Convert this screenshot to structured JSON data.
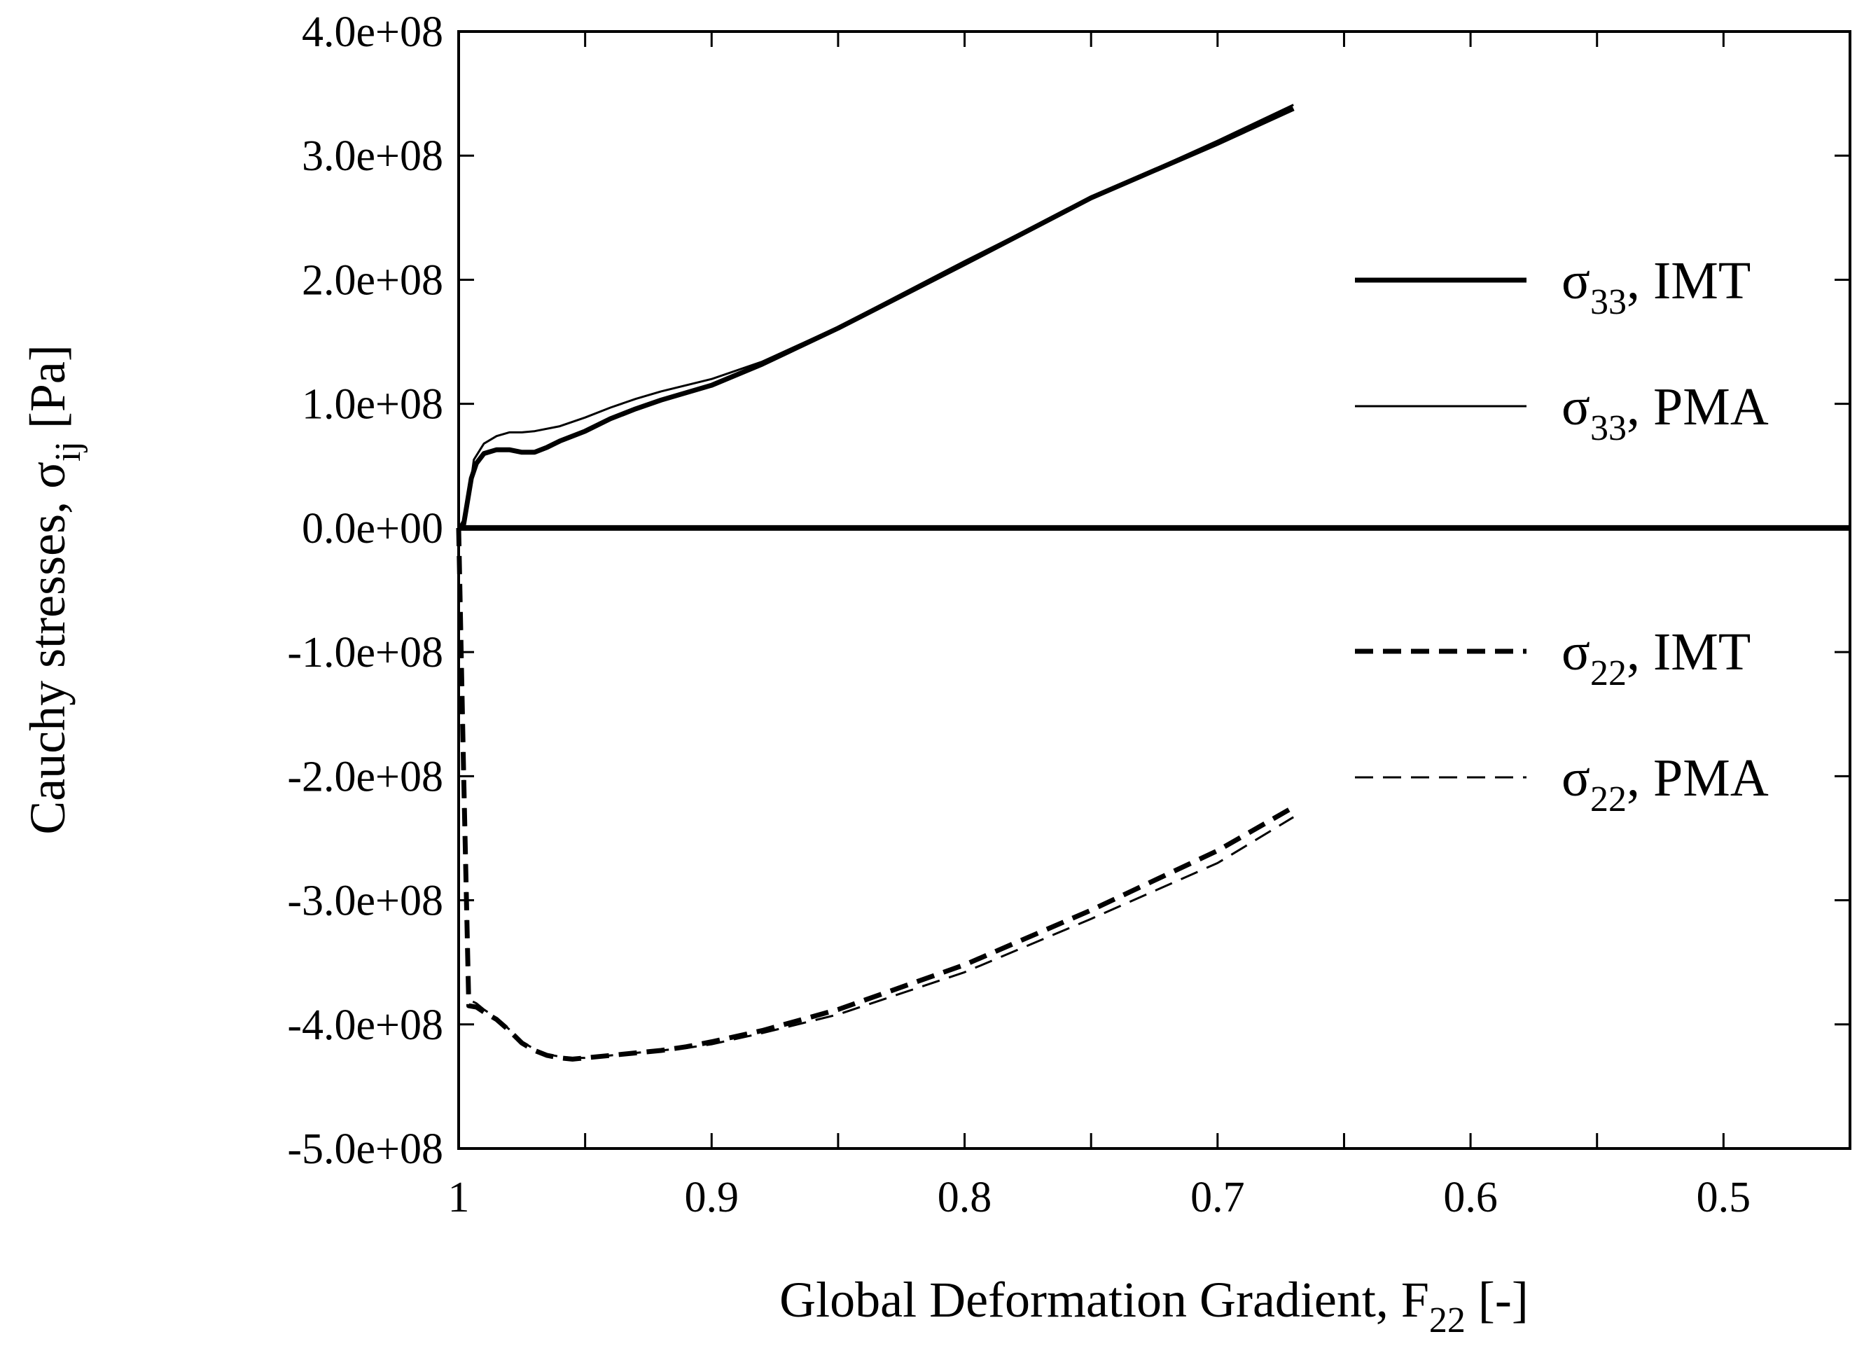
{
  "chart_data": {
    "type": "line",
    "xlabel": {
      "main": "Global Deformation Gradient, F",
      "sub": "22",
      "suffix": "  [-]"
    },
    "ylabel": {
      "main": "Cauchy stresses, σ",
      "sub": "ij",
      "suffix": "  [Pa]"
    },
    "xlim": [
      1.0,
      0.45
    ],
    "ylim": [
      -500000000,
      400000000
    ],
    "x_reversed": true,
    "xticks": [
      1.0,
      0.95,
      0.9,
      0.85,
      0.8,
      0.75,
      0.7,
      0.65,
      0.6,
      0.55,
      0.5,
      0.45
    ],
    "xtick_labels": [
      {
        "value": 1.0,
        "label": "1"
      },
      {
        "value": 0.9,
        "label": "0.9"
      },
      {
        "value": 0.8,
        "label": "0.8"
      },
      {
        "value": 0.7,
        "label": "0.7"
      },
      {
        "value": 0.6,
        "label": "0.6"
      },
      {
        "value": 0.5,
        "label": "0.5"
      }
    ],
    "yticks": [
      {
        "value": 400000000,
        "label": "4.0e+08"
      },
      {
        "value": 300000000,
        "label": "3.0e+08"
      },
      {
        "value": 200000000,
        "label": "2.0e+08"
      },
      {
        "value": 100000000,
        "label": "1.0e+08"
      },
      {
        "value": 0,
        "label": "0.0e+00"
      },
      {
        "value": -100000000,
        "label": "-1.0e+08"
      },
      {
        "value": -200000000,
        "label": "-2.0e+08"
      },
      {
        "value": -300000000,
        "label": "-3.0e+08"
      },
      {
        "value": -400000000,
        "label": "-4.0e+08"
      },
      {
        "value": -500000000,
        "label": "-5.0e+08"
      }
    ],
    "grid": false,
    "legend_placement": "right",
    "zero_line": true,
    "series": [
      {
        "name": "σ33, IMT",
        "label_main": "σ",
        "label_sub": "33",
        "label_suffix": ", IMT",
        "style": "solid-thick",
        "x": [
          1.0,
          0.998,
          0.995,
          0.993,
          0.99,
          0.985,
          0.98,
          0.975,
          0.97,
          0.965,
          0.96,
          0.95,
          0.94,
          0.93,
          0.92,
          0.9,
          0.88,
          0.85,
          0.8,
          0.75,
          0.7,
          0.67
        ],
        "y": [
          0,
          3000000,
          40000000,
          52000000,
          60000000,
          63000000,
          63000000,
          61000000,
          61000000,
          65000000,
          70000000,
          78000000,
          88000000,
          96000000,
          103000000,
          115000000,
          132000000,
          161000000,
          213000000,
          266000000,
          310000000,
          338000000
        ]
      },
      {
        "name": "σ33, PMA",
        "label_main": "σ",
        "label_sub": "33",
        "label_suffix": ", PMA",
        "style": "solid-thin",
        "x": [
          1.0,
          0.997,
          0.994,
          0.99,
          0.985,
          0.98,
          0.975,
          0.97,
          0.96,
          0.95,
          0.94,
          0.93,
          0.92,
          0.9,
          0.88,
          0.85,
          0.8,
          0.75,
          0.7,
          0.67
        ],
        "y": [
          0,
          10000000,
          55000000,
          68000000,
          74000000,
          77000000,
          77000000,
          78000000,
          82000000,
          89000000,
          97000000,
          104000000,
          110000000,
          120000000,
          134000000,
          162000000,
          215000000,
          266000000,
          312000000,
          341000000
        ]
      },
      {
        "name": "σ22, IMT",
        "label_main": "σ",
        "label_sub": "22",
        "label_suffix": ", IMT",
        "style": "dashed-thick",
        "x": [
          1.0,
          0.998,
          0.996,
          0.993,
          0.99,
          0.985,
          0.98,
          0.975,
          0.97,
          0.965,
          0.96,
          0.955,
          0.95,
          0.94,
          0.93,
          0.92,
          0.91,
          0.9,
          0.88,
          0.85,
          0.8,
          0.75,
          0.7,
          0.67
        ],
        "y": [
          0,
          -200000000,
          -385000000,
          -386000000,
          -390000000,
          -396000000,
          -405000000,
          -415000000,
          -421000000,
          -425000000,
          -427000000,
          -428000000,
          -427000000,
          -425000000,
          -423000000,
          -421000000,
          -418000000,
          -414000000,
          -405000000,
          -388000000,
          -352000000,
          -308000000,
          -260000000,
          -225000000
        ]
      },
      {
        "name": "σ22, PMA",
        "label_main": "σ",
        "label_sub": "22",
        "label_suffix": ", PMA",
        "style": "dashed-thin",
        "x": [
          1.0,
          0.998,
          0.996,
          0.993,
          0.99,
          0.985,
          0.98,
          0.975,
          0.97,
          0.965,
          0.96,
          0.955,
          0.95,
          0.94,
          0.93,
          0.92,
          0.91,
          0.9,
          0.88,
          0.85,
          0.8,
          0.75,
          0.7,
          0.67
        ],
        "y": [
          0,
          -200000000,
          -380000000,
          -383000000,
          -388000000,
          -395000000,
          -404000000,
          -414000000,
          -420000000,
          -424000000,
          -426000000,
          -427000000,
          -427000000,
          -425000000,
          -423000000,
          -421000000,
          -419000000,
          -416000000,
          -407000000,
          -392000000,
          -358000000,
          -315000000,
          -270000000,
          -233000000
        ]
      }
    ]
  }
}
